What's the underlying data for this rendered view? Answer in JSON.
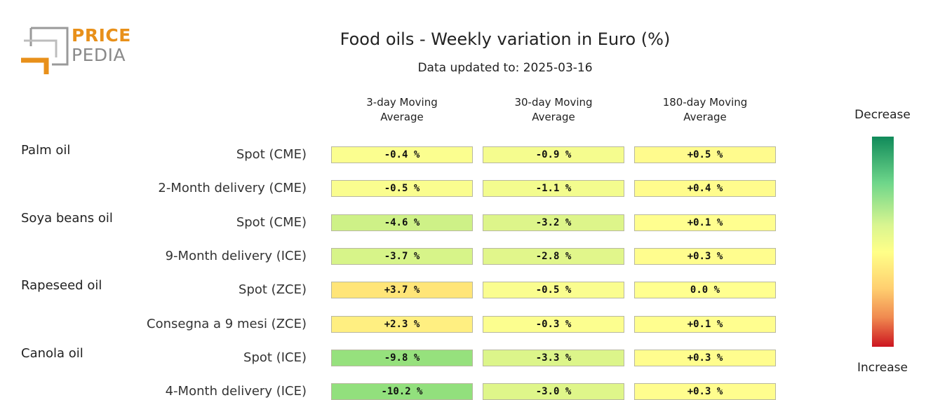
{
  "logo": {
    "line1": "PRICE",
    "line2": "PEDIA"
  },
  "title": "Food oils - Weekly variation in Euro (%)",
  "subtitle": "Data updated to: 2025-03-16",
  "legend": {
    "top": "Decrease",
    "bottom": "Increase"
  },
  "chart_data": {
    "type": "heatmap",
    "columns": [
      {
        "line1": "3-day Moving",
        "line2": "Average"
      },
      {
        "line1": "30-day Moving",
        "line2": "Average"
      },
      {
        "line1": "180-day Moving",
        "line2": "Average"
      }
    ],
    "groups": [
      "Palm oil",
      "Soya beans oil",
      "Rapeseed oil",
      "Canola oil"
    ],
    "rows": [
      {
        "group": "Palm oil",
        "label": "Spot (CME)",
        "values": [
          -0.4,
          -0.9,
          0.5
        ],
        "display": [
          "-0.4 %",
          "-0.9 %",
          "+0.5 %"
        ]
      },
      {
        "group": "",
        "label": "2-Month delivery (CME)",
        "values": [
          -0.5,
          -1.1,
          0.4
        ],
        "display": [
          "-0.5 %",
          "-1.1 %",
          "+0.4 %"
        ]
      },
      {
        "group": "Soya beans oil",
        "label": "Spot (CME)",
        "values": [
          -4.6,
          -3.2,
          0.1
        ],
        "display": [
          "-4.6 %",
          "-3.2 %",
          "+0.1 %"
        ]
      },
      {
        "group": "",
        "label": "9-Month delivery (ICE)",
        "values": [
          -3.7,
          -2.8,
          0.3
        ],
        "display": [
          "-3.7 %",
          "-2.8 %",
          "+0.3 %"
        ]
      },
      {
        "group": "Rapeseed oil",
        "label": "Spot (ZCE)",
        "values": [
          3.7,
          -0.5,
          0.0
        ],
        "display": [
          "+3.7 %",
          "-0.5 %",
          "0.0 %"
        ]
      },
      {
        "group": "",
        "label": "Consegna a 9 mesi (ZCE)",
        "values": [
          2.3,
          -0.3,
          0.1
        ],
        "display": [
          "+2.3 %",
          "-0.3 %",
          "+0.1 %"
        ]
      },
      {
        "group": "Canola oil",
        "label": "Spot (ICE)",
        "values": [
          -9.8,
          -3.3,
          0.3
        ],
        "display": [
          "-9.8 %",
          "-3.3 %",
          "+0.3 %"
        ]
      },
      {
        "group": "",
        "label": "4-Month delivery (ICE)",
        "values": [
          -10.2,
          -3.0,
          0.3
        ],
        "display": [
          "-10.2 %",
          "-3.0 %",
          "+0.3 %"
        ]
      }
    ],
    "color_scale": {
      "decrease": "#108a5a",
      "neutral": "#ffff88",
      "increase": "#cc1520"
    }
  }
}
